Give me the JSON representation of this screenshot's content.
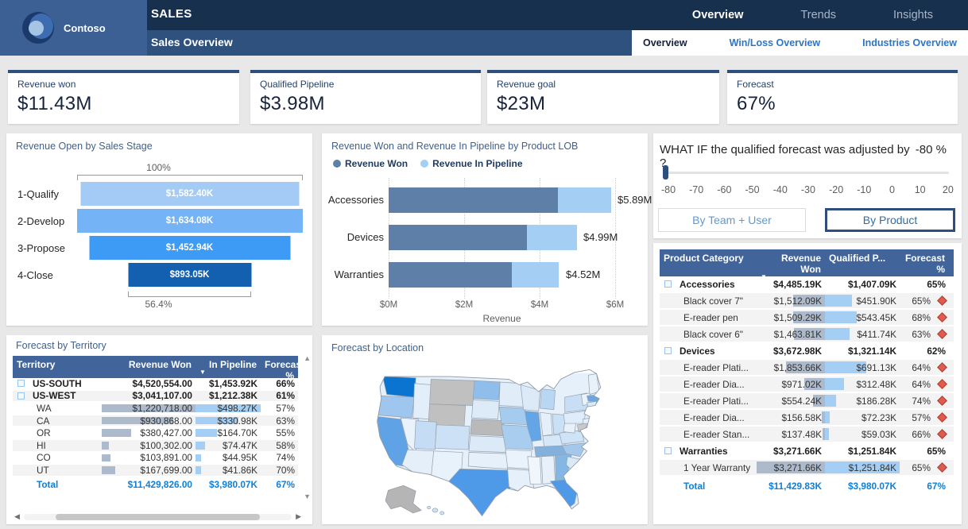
{
  "palette": {
    "topbar": "#17304E",
    "subbar": "#2F517D",
    "logo_block": "#3D6094",
    "card_accent": "#2E4E7E",
    "table_header": "#41659A",
    "total_blue": "#0F7FD9",
    "won_bar": "#5E80A8",
    "pipeline_bar": "#A5CEF5",
    "flag_red": "#E05A4E",
    "map_dark": "#0B74D1",
    "map_mid": "#4E9AE8",
    "map_light": "#DCEAF8",
    "map_gray": "#BDBDBD"
  },
  "header": {
    "logo_text": "Contoso",
    "app_title": "SALES",
    "page_title": "Sales Overview",
    "top_tabs": [
      {
        "label": "Overview",
        "active": true
      },
      {
        "label": "Trends",
        "active": false
      },
      {
        "label": "Insights",
        "active": false
      }
    ],
    "sub_tabs": [
      {
        "label": "Overview",
        "active": true
      },
      {
        "label": "Win/Loss Overview",
        "active": false
      },
      {
        "label": "Industries Overview",
        "active": false
      }
    ]
  },
  "kpis": [
    {
      "label": "Revenue won",
      "value": "$11.43M"
    },
    {
      "label": "Qualified Pipeline",
      "value": "$3.98M"
    },
    {
      "label": "Revenue goal",
      "value": "$23M"
    },
    {
      "label": "Forecast",
      "value": "67%"
    }
  ],
  "funnel": {
    "title": "Revenue Open by Sales Stage",
    "top_label": "100%",
    "bottom_label": "56.4%",
    "stages": [
      {
        "name": "1-Qualify",
        "value": "$1,582.40K",
        "n": 1582.4,
        "color": "#A3CBF5"
      },
      {
        "name": "2-Develop",
        "value": "$1,634.08K",
        "n": 1634.08,
        "color": "#74B3F5"
      },
      {
        "name": "3-Propose",
        "value": "$1,452.94K",
        "n": 1452.94,
        "color": "#3D9BF5"
      },
      {
        "name": "4-Close",
        "value": "$893.05K",
        "n": 893.05,
        "color": "#1460B0"
      }
    ]
  },
  "lob_chart": {
    "title": "Revenue Won and Revenue In Pipeline by Product LOB",
    "legend": [
      {
        "label": "Revenue Won",
        "color": "#5E80A8"
      },
      {
        "label": "Revenue In Pipeline",
        "color": "#A5CEF5"
      }
    ],
    "rows": [
      {
        "category": "Accessories",
        "won": 4.485,
        "pipeline": 1.407,
        "total": "$5.89M"
      },
      {
        "category": "Devices",
        "won": 3.673,
        "pipeline": 1.321,
        "total": "$4.99M"
      },
      {
        "category": "Warranties",
        "won": 3.272,
        "pipeline": 1.252,
        "total": "$4.52M"
      }
    ],
    "x_ticks": [
      "$0M",
      "$2M",
      "$4M",
      "$6M"
    ],
    "x_max": 6,
    "xlabel": "Revenue"
  },
  "whatif": {
    "title_prefix": "WHAT IF the qualified forecast was adjusted by",
    "adjustment_value": "-80 %",
    "title_suffix": "?",
    "ticks": [
      "-80",
      "-70",
      "-60",
      "-50",
      "-40",
      "-30",
      "-20",
      "-10",
      "0",
      "10",
      "20"
    ],
    "buttons": [
      {
        "label": "By Team + User",
        "active": false
      },
      {
        "label": "By Product",
        "active": true
      }
    ]
  },
  "product_table": {
    "columns": [
      "Product Category",
      "Revenue Won",
      "Qualified P...",
      "Forecast %"
    ],
    "sorted_by": "Revenue Won",
    "rows": [
      {
        "type": "group",
        "name": "Accessories",
        "won": "$4,485.19K",
        "won_n": 4485.19,
        "qual": "$1,407.09K",
        "qual_n": 1407.09,
        "fc": "65%"
      },
      {
        "type": "detail",
        "name": "Black cover 7\"",
        "won": "$1,512.09K",
        "won_n": 1512.09,
        "qual": "$451.90K",
        "qual_n": 451.9,
        "fc": "65%"
      },
      {
        "type": "detail",
        "name": "E-reader pen",
        "won": "$1,509.29K",
        "won_n": 1509.29,
        "qual": "$543.45K",
        "qual_n": 543.45,
        "fc": "68%"
      },
      {
        "type": "detail",
        "name": "Black cover 6\"",
        "won": "$1,463.81K",
        "won_n": 1463.81,
        "qual": "$411.74K",
        "qual_n": 411.74,
        "fc": "63%"
      },
      {
        "type": "group",
        "name": "Devices",
        "won": "$3,672.98K",
        "won_n": 3672.98,
        "qual": "$1,321.14K",
        "qual_n": 1321.14,
        "fc": "62%"
      },
      {
        "type": "detail",
        "name": "E-reader Plati...",
        "won": "$1,853.66K",
        "won_n": 1853.66,
        "qual": "$691.13K",
        "qual_n": 691.13,
        "fc": "64%"
      },
      {
        "type": "detail",
        "name": "E-reader Dia...",
        "won": "$971.02K",
        "won_n": 971.02,
        "qual": "$312.48K",
        "qual_n": 312.48,
        "fc": "64%"
      },
      {
        "type": "detail",
        "name": "E-reader Plati...",
        "won": "$554.24K",
        "won_n": 554.24,
        "qual": "$186.28K",
        "qual_n": 186.28,
        "fc": "74%"
      },
      {
        "type": "detail",
        "name": "E-reader Dia...",
        "won": "$156.58K",
        "won_n": 156.58,
        "qual": "$72.23K",
        "qual_n": 72.23,
        "fc": "57%"
      },
      {
        "type": "detail",
        "name": "E-reader Stan...",
        "won": "$137.48K",
        "won_n": 137.48,
        "qual": "$59.03K",
        "qual_n": 59.03,
        "fc": "66%"
      },
      {
        "type": "group",
        "name": "Warranties",
        "won": "$3,271.66K",
        "won_n": 3271.66,
        "qual": "$1,251.84K",
        "qual_n": 1251.84,
        "fc": "65%"
      },
      {
        "type": "detail",
        "name": "1 Year Warranty",
        "won": "$3,271.66K",
        "won_n": 3271.66,
        "qual": "$1,251.84K",
        "qual_n": 1251.84,
        "fc": "65%"
      }
    ],
    "total": {
      "label": "Total",
      "won": "$11,429.83K",
      "qual": "$3,980.07K",
      "fc": "67%"
    }
  },
  "territory_table": {
    "title": "Forecast by Territory",
    "columns": [
      "Territory",
      "Revenue Won",
      "In Pipeline",
      "Forecast %"
    ],
    "sorted_by": "In Pipeline",
    "rows": [
      {
        "type": "group",
        "name": "US-SOUTH",
        "won": "$4,520,554.00",
        "won_n": 4520554,
        "pipe": "$1,453.92K",
        "pipe_n": 1453.92,
        "fc": "66%"
      },
      {
        "type": "group",
        "name": "US-WEST",
        "won": "$3,041,107.00",
        "won_n": 3041107,
        "pipe": "$1,212.38K",
        "pipe_n": 1212.38,
        "fc": "61%"
      },
      {
        "type": "detail",
        "name": "WA",
        "won": "$1,220,718.00",
        "won_n": 1220718,
        "pipe": "$498.27K",
        "pipe_n": 498.27,
        "fc": "57%"
      },
      {
        "type": "detail",
        "name": "CA",
        "won": "$930,868.00",
        "won_n": 930868,
        "pipe": "$330.98K",
        "pipe_n": 330.98,
        "fc": "63%"
      },
      {
        "type": "detail",
        "name": "OR",
        "won": "$380,427.00",
        "won_n": 380427,
        "pipe": "$164.70K",
        "pipe_n": 164.7,
        "fc": "55%"
      },
      {
        "type": "detail",
        "name": "HI",
        "won": "$100,302.00",
        "won_n": 100302,
        "pipe": "$74.47K",
        "pipe_n": 74.47,
        "fc": "58%"
      },
      {
        "type": "detail",
        "name": "CO",
        "won": "$103,891.00",
        "won_n": 103891,
        "pipe": "$44.95K",
        "pipe_n": 44.95,
        "fc": "74%"
      },
      {
        "type": "detail",
        "name": "UT",
        "won": "$167,699.00",
        "won_n": 167699,
        "pipe": "$41.86K",
        "pipe_n": 41.86,
        "fc": "70%"
      }
    ],
    "total": {
      "label": "Total",
      "won": "$11,429,826.00",
      "pipe": "$3,980.07K",
      "fc": "67%"
    }
  },
  "map": {
    "title": "Forecast by Location"
  }
}
